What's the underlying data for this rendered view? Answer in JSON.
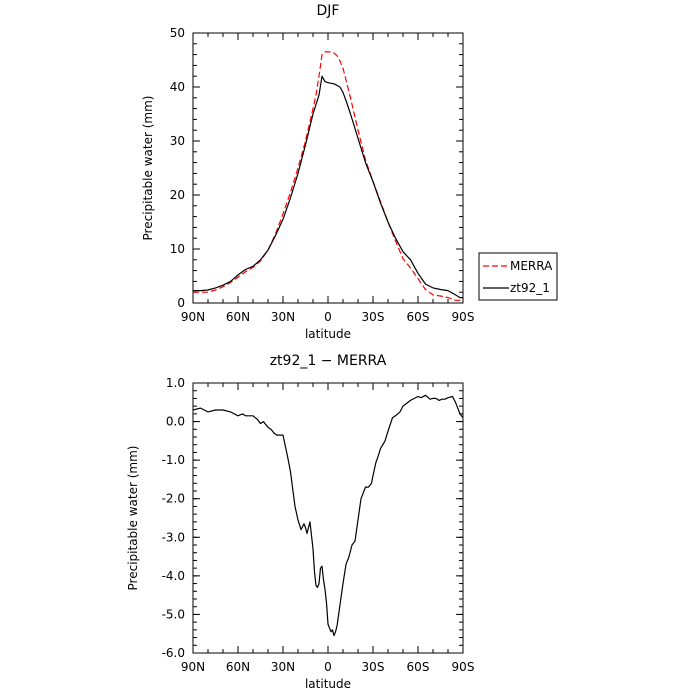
{
  "chart_data": [
    {
      "type": "line",
      "title": "DJF",
      "xlabel": "latitude",
      "ylabel": "Precipitable water (mm)",
      "xlim": [
        90,
        -90
      ],
      "ylim": [
        0,
        50
      ],
      "x_ticks": [
        90,
        60,
        30,
        0,
        -30,
        -60,
        -90
      ],
      "x_tick_labels": [
        "90N",
        "60N",
        "30N",
        "0",
        "30S",
        "60S",
        "90S"
      ],
      "y_ticks": [
        0,
        10,
        20,
        30,
        40,
        50
      ],
      "y_tick_labels": [
        "0",
        "10",
        "20",
        "30",
        "40",
        "50"
      ],
      "legend_position": "outside-right",
      "series": [
        {
          "name": "MERRA",
          "color": "#ff0000",
          "dash": "dashed",
          "x": [
            90,
            85,
            80,
            75,
            70,
            65,
            60,
            55,
            50,
            45,
            40,
            35,
            30,
            25,
            20,
            15,
            10,
            8,
            6,
            4,
            2,
            0,
            -2,
            -4,
            -6,
            -8,
            -10,
            -15,
            -20,
            -25,
            -30,
            -35,
            -40,
            -45,
            -50,
            -55,
            -60,
            -65,
            -70,
            -75,
            -80,
            -85,
            -88,
            -90
          ],
          "y": [
            2,
            2,
            2,
            2.4,
            3,
            3.8,
            4.8,
            5.8,
            6.6,
            7.8,
            9.8,
            12.8,
            16.5,
            20.5,
            25,
            30,
            36,
            38.5,
            42,
            46,
            46.5,
            46.5,
            46.5,
            46.3,
            45.8,
            44.8,
            43.5,
            38,
            32,
            26.5,
            22.5,
            18.8,
            15,
            11.5,
            8.2,
            6.5,
            4.5,
            2.5,
            1.5,
            1.3,
            1,
            0.5,
            0.5,
            0.5
          ]
        },
        {
          "name": "zt92_1",
          "color": "#000000",
          "dash": "solid",
          "x": [
            90,
            85,
            80,
            75,
            70,
            65,
            60,
            55,
            50,
            45,
            40,
            35,
            30,
            25,
            20,
            15,
            10,
            6,
            4,
            2,
            0,
            -4,
            -8,
            -10,
            -12,
            -15,
            -20,
            -25,
            -30,
            -35,
            -40,
            -45,
            -50,
            -55,
            -60,
            -65,
            -70,
            -75,
            -80,
            -85,
            -88,
            -90
          ],
          "y": [
            2.3,
            2.3,
            2.4,
            2.8,
            3.3,
            4,
            5.2,
            6.2,
            6.8,
            8,
            9.8,
            12.5,
            15.5,
            19.5,
            24,
            29.3,
            35,
            38.5,
            42,
            41,
            40.8,
            40.6,
            40,
            39,
            37.5,
            35,
            30.5,
            26,
            22.5,
            18.5,
            15,
            12,
            9.5,
            8,
            5.5,
            3.5,
            2.8,
            2.5,
            2.3,
            1.5,
            1,
            1
          ]
        }
      ]
    },
    {
      "type": "line",
      "title": "zt92_1 − MERRA",
      "xlabel": "latitude",
      "ylabel": "Precipitable water (mm)",
      "xlim": [
        90,
        -90
      ],
      "ylim": [
        -6,
        1
      ],
      "x_ticks": [
        90,
        60,
        30,
        0,
        -30,
        -60,
        -90
      ],
      "x_tick_labels": [
        "90N",
        "60N",
        "30N",
        "0",
        "30S",
        "60S",
        "90S"
      ],
      "y_ticks": [
        1,
        0,
        -1,
        -2,
        -3,
        -4,
        -5,
        -6
      ],
      "y_tick_labels": [
        "1.0",
        "0.0",
        "-1.0",
        "-2.0",
        "-3.0",
        "-4.0",
        "-5.0",
        "-6.0"
      ],
      "series": [
        {
          "color": "#000000",
          "dash": "solid",
          "x": [
            90,
            85,
            80,
            75,
            70,
            65,
            60,
            57,
            55,
            50,
            47,
            45,
            43,
            40,
            38,
            36,
            34,
            30,
            27,
            25,
            23,
            22,
            20,
            18,
            16,
            15,
            14,
            12,
            10,
            9,
            8,
            7,
            6,
            5,
            4,
            3,
            2,
            1,
            0,
            -2,
            -3,
            -4,
            -5,
            -6,
            -8,
            -10,
            -12,
            -14,
            -16,
            -18,
            -20,
            -22,
            -25,
            -27,
            -29,
            -30,
            -32,
            -33,
            -35,
            -38,
            -40,
            -43,
            -45,
            -48,
            -50,
            -55,
            -60,
            -62,
            -65,
            -68,
            -70,
            -72,
            -74,
            -76,
            -78,
            -80,
            -83,
            -85,
            -88,
            -90
          ],
          "y": [
            0.3,
            0.35,
            0.25,
            0.3,
            0.3,
            0.25,
            0.15,
            0.2,
            0.15,
            0.15,
            0.05,
            -0.05,
            0,
            -0.15,
            -0.2,
            -0.3,
            -0.35,
            -0.35,
            -0.9,
            -1.3,
            -1.9,
            -2.2,
            -2.55,
            -2.8,
            -2.65,
            -2.75,
            -2.9,
            -2.6,
            -3.3,
            -3.9,
            -4.25,
            -4.3,
            -4.2,
            -3.8,
            -3.75,
            -4.1,
            -4.35,
            -4.7,
            -5.25,
            -5.45,
            -5.4,
            -5.55,
            -5.45,
            -5.3,
            -4.75,
            -4.2,
            -3.7,
            -3.5,
            -3.2,
            -3.1,
            -2.55,
            -2.0,
            -1.7,
            -1.7,
            -1.6,
            -1.4,
            -1.05,
            -0.95,
            -0.7,
            -0.5,
            -0.25,
            0.1,
            0.15,
            0.25,
            0.4,
            0.55,
            0.65,
            0.62,
            0.68,
            0.58,
            0.6,
            0.6,
            0.55,
            0.58,
            0.58,
            0.62,
            0.65,
            0.5,
            0.2,
            0.1
          ]
        }
      ]
    }
  ]
}
